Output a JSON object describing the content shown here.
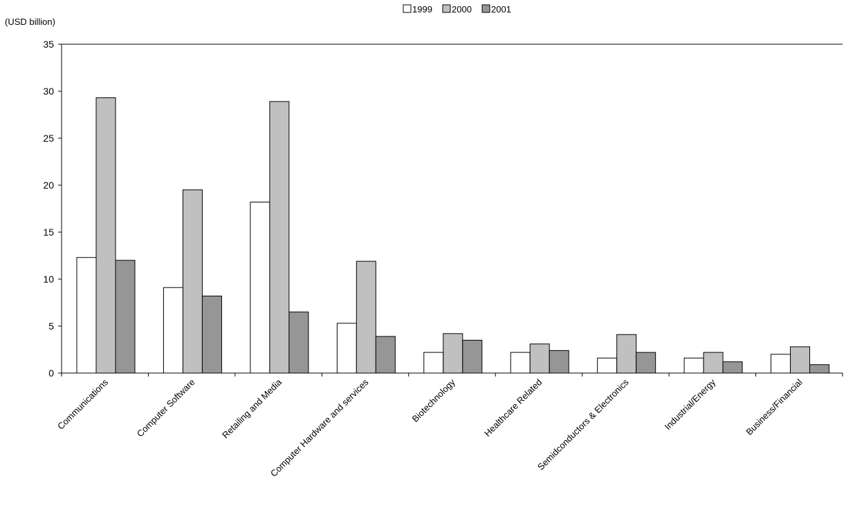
{
  "chart_data": {
    "type": "bar",
    "title": "",
    "xlabel": "",
    "ylabel": "",
    "unit_label": "(USD billion)",
    "ylim": [
      0,
      35
    ],
    "yticks": [
      0,
      5,
      10,
      15,
      20,
      25,
      30,
      35
    ],
    "grid": false,
    "legend_position": "top-center",
    "categories": [
      "Communications",
      "Computer Software",
      "Retailing and Media",
      "Computer Hardware and services",
      "Biotechnology",
      "Healthcare Related",
      "Semidconductors & Electronics",
      "Industrial/Energy",
      "Business/Financial"
    ],
    "series": [
      {
        "name": "1999",
        "color": "#ffffff",
        "values": [
          12.3,
          9.1,
          18.2,
          5.3,
          2.2,
          2.2,
          1.6,
          1.6,
          2.0
        ]
      },
      {
        "name": "2000",
        "color": "#c0c0c0",
        "values": [
          29.3,
          19.5,
          28.9,
          11.9,
          4.2,
          3.1,
          4.1,
          2.2,
          2.8
        ]
      },
      {
        "name": "2001",
        "color": "#969696",
        "values": [
          12.0,
          8.2,
          6.5,
          3.9,
          3.5,
          2.4,
          2.2,
          1.2,
          0.9
        ]
      }
    ]
  }
}
